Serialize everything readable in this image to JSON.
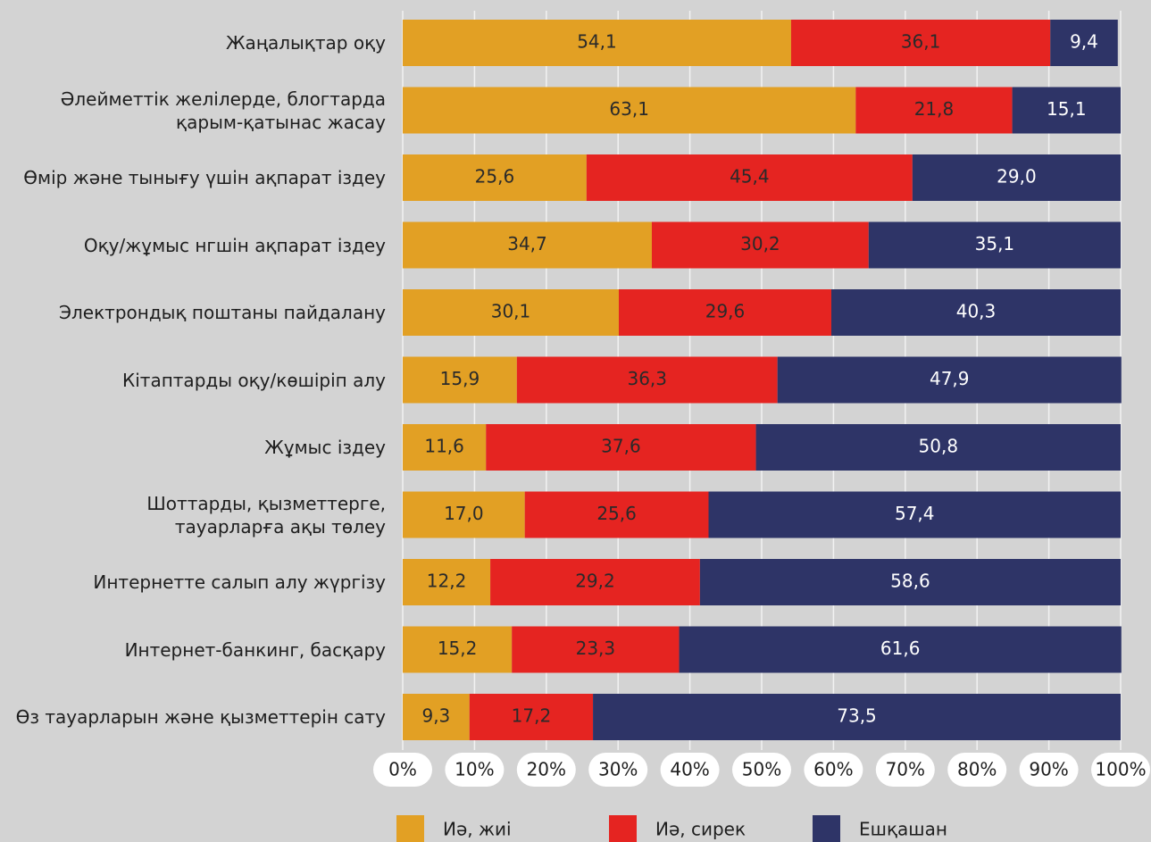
{
  "chart_data": {
    "type": "stacked_barh",
    "categories": [
      "Жаңалықтар оқу",
      "Әлейметтік желілерде, блогтарда\nқарым-қатынас жасау",
      "Өмір және тынығу үшін ақпарат іздеу",
      "Оқу/жұмыс нгшін ақпарат іздеу",
      "Электрондық поштаны пайдалану",
      "Кітаптарды оқу/көшіріп алу",
      "Жұмыс іздеу",
      "Шоттарды, қызметтерге,\nтауарларға ақы төлеу",
      "Интернетте салып алу жүргізу",
      "Интернет-банкинг, басқару",
      "Өз тауарларын және қызметтерін сату"
    ],
    "series": [
      {
        "name": "Иә, жиі",
        "color": "#e2a024",
        "label_color": "#2a2a2a",
        "values": [
          54.1,
          63.1,
          25.6,
          34.7,
          30.1,
          15.9,
          11.6,
          17.0,
          12.2,
          15.2,
          9.3
        ],
        "value_labels": [
          "54,1",
          "63,1",
          "25,6",
          "34,7",
          "30,1",
          "15,9",
          "11,6",
          "17,0",
          "12,2",
          "15,2",
          "9,3"
        ]
      },
      {
        "name": "Иә, сирек",
        "color": "#e52421",
        "label_color": "#2a2a2a",
        "values": [
          36.1,
          21.8,
          45.4,
          30.2,
          29.6,
          36.3,
          37.6,
          25.6,
          29.2,
          23.3,
          17.2
        ],
        "value_labels": [
          "36,1",
          "21,8",
          "45,4",
          "30,2",
          "29,6",
          "36,3",
          "37,6",
          "25,6",
          "29,2",
          "23,3",
          "17,2"
        ]
      },
      {
        "name": "Ешқашан",
        "color": "#2e3467",
        "label_color": "#ffffff",
        "values": [
          9.4,
          15.1,
          29.0,
          35.1,
          40.3,
          47.9,
          50.8,
          57.4,
          58.6,
          61.6,
          73.5
        ],
        "value_labels": [
          "9,4",
          "15,1",
          "29,0",
          "35,1",
          "40,3",
          "47,9",
          "50,8",
          "57,4",
          "58,6",
          "61,6",
          "73,5"
        ]
      }
    ],
    "xlim": [
      0,
      100
    ],
    "xticks": [
      {
        "value": 0,
        "label": "0%"
      },
      {
        "value": 10,
        "label": "10%"
      },
      {
        "value": 20,
        "label": "20%"
      },
      {
        "value": 30,
        "label": "30%"
      },
      {
        "value": 40,
        "label": "40%"
      },
      {
        "value": 50,
        "label": "50%"
      },
      {
        "value": 60,
        "label": "60%"
      },
      {
        "value": 70,
        "label": "70%"
      },
      {
        "value": 80,
        "label": "80%"
      },
      {
        "value": 90,
        "label": "90%"
      },
      {
        "value": 100,
        "label": "100%"
      }
    ],
    "grid": true,
    "legend": "bottom"
  }
}
